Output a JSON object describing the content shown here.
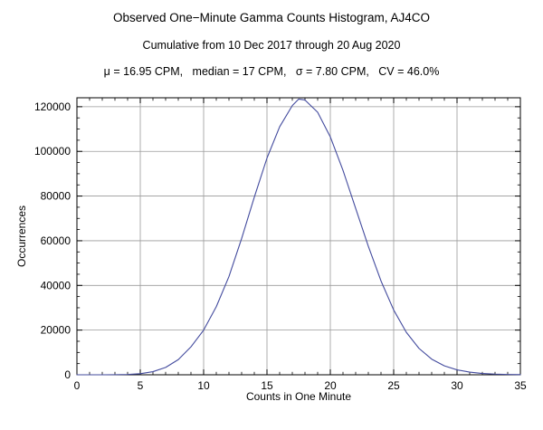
{
  "title": "Observed One−Minute Gamma Counts Histogram, AJ4CO",
  "subtitle": "Cumulative from 10 Dec 2017 through 20 Aug 2020",
  "stats_line": "μ = 16.95 CPM,   median = 17 CPM,   σ = 7.80 CPM,   CV = 46.0%",
  "chart_data": {
    "type": "line",
    "title": "Observed One−Minute Gamma Counts Histogram, AJ4CO",
    "subtitle": "Cumulative from 10 Dec 2017 through 20 Aug 2020",
    "annotations": [
      "μ = 16.95 CPM",
      "median = 17 CPM",
      "σ = 7.80 CPM",
      "CV = 46.0%"
    ],
    "xlabel": "Counts in One Minute",
    "ylabel": "Occurrences",
    "xlim": [
      0,
      35
    ],
    "ylim": [
      0,
      124000
    ],
    "x_ticks": [
      0,
      5,
      10,
      15,
      20,
      25,
      30,
      35
    ],
    "y_ticks": [
      0,
      20000,
      40000,
      60000,
      80000,
      100000,
      120000
    ],
    "x_minor_step": 1,
    "y_minor_step": 5000,
    "grid": true,
    "grid_color": "#9a9a9a",
    "frame_color": "#000000",
    "line_color": "#434b9e",
    "x": [
      0,
      1,
      2,
      3,
      4,
      5,
      6,
      7,
      8,
      9,
      10,
      11,
      12,
      13,
      14,
      15,
      16,
      17,
      17.5,
      18,
      19,
      20,
      21,
      22,
      23,
      24,
      25,
      26,
      27,
      28,
      29,
      30,
      31,
      32,
      33,
      34,
      35
    ],
    "y": [
      0,
      0,
      0,
      50,
      150,
      500,
      1400,
      3300,
      6800,
      12500,
      20000,
      30500,
      44000,
      61000,
      79500,
      97000,
      111000,
      120500,
      123400,
      123000,
      117500,
      106500,
      91500,
      74500,
      57500,
      42000,
      29000,
      19000,
      11800,
      7000,
      4000,
      2200,
      1200,
      600,
      300,
      150,
      80
    ]
  }
}
